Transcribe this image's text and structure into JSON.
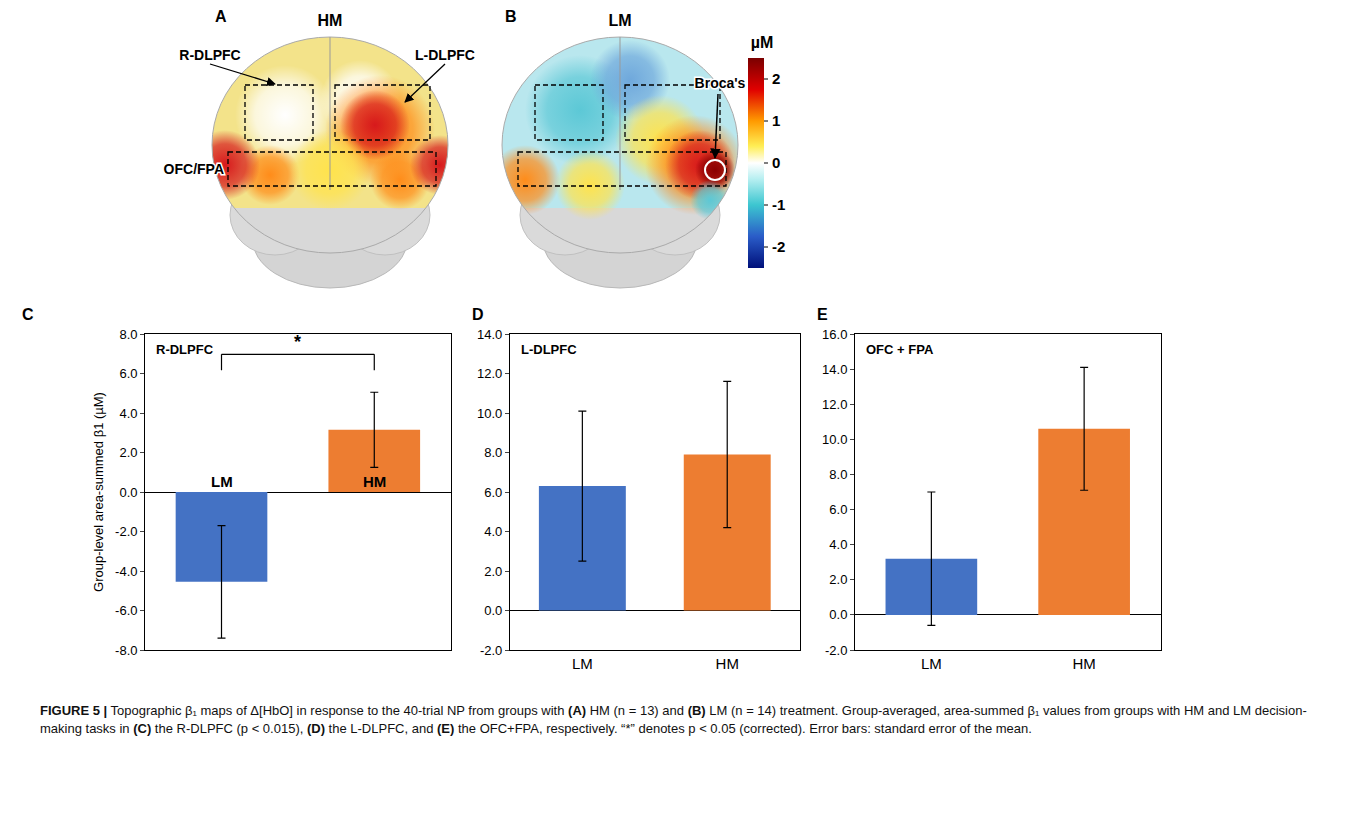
{
  "maps": [
    {
      "letter": "A",
      "title": "HM",
      "regions": [
        "R-DLPFC",
        "L-DLPFC",
        "OFC/FPA"
      ],
      "marker_label": null
    },
    {
      "letter": "B",
      "title": "LM",
      "regions": [],
      "marker_label": "Broca's"
    }
  ],
  "colorbar": {
    "title": "µM",
    "range": [
      -2.5,
      2.5
    ],
    "ticks": [
      2,
      1,
      0,
      -1,
      -2
    ]
  },
  "chart_data": [
    {
      "type": "bar",
      "letter": "C",
      "title": "R-DLPFC",
      "categories": [
        "LM",
        "HM"
      ],
      "values": [
        -4.55,
        3.15
      ],
      "error": [
        2.85,
        1.9
      ],
      "colors": [
        "#4472c4",
        "#ed7d31"
      ],
      "y_label": "Group-level area-summed β1 (µM)",
      "ylim": [
        -8,
        8
      ],
      "yticks": [
        {
          "value": -8,
          "label": "-8.0"
        },
        {
          "value": -6,
          "label": "-6.0"
        },
        {
          "value": -4,
          "label": "-4.0"
        },
        {
          "value": -2,
          "label": "-2.0"
        },
        {
          "value": 0,
          "label": "0.0"
        },
        {
          "value": 2,
          "label": "2.0"
        },
        {
          "value": 4,
          "label": "4.0"
        },
        {
          "value": 6,
          "label": "6.0"
        },
        {
          "value": 8,
          "label": "8.0"
        }
      ],
      "significance": {
        "pair": [
          "LM",
          "HM"
        ],
        "label": "*"
      },
      "tick_labels": "y",
      "grid": false
    },
    {
      "type": "bar",
      "letter": "D",
      "title": "L-DLPFC",
      "categories": [
        "LM",
        "HM"
      ],
      "values": [
        6.3,
        7.9
      ],
      "error": [
        3.8,
        3.7
      ],
      "colors": [
        "#4472c4",
        "#ed7d31"
      ],
      "ylim": [
        -2,
        14
      ],
      "yticks": [
        {
          "value": -2,
          "label": "-2.0"
        },
        {
          "value": 0,
          "label": "0.0"
        },
        {
          "value": 2,
          "label": "2.0"
        },
        {
          "value": 4,
          "label": "4.0"
        },
        {
          "value": 6,
          "label": "6.0"
        },
        {
          "value": 8,
          "label": "8.0"
        },
        {
          "value": 10,
          "label": "10.0"
        },
        {
          "value": 12,
          "label": "12.0"
        },
        {
          "value": 14,
          "label": "14.0"
        }
      ],
      "grid": false
    },
    {
      "type": "bar",
      "letter": "E",
      "title": "OFC + FPA",
      "categories": [
        "LM",
        "HM"
      ],
      "values": [
        3.2,
        10.6
      ],
      "error": [
        3.8,
        3.5
      ],
      "colors": [
        "#4472c4",
        "#ed7d31"
      ],
      "ylim": [
        -2,
        16
      ],
      "yticks": [
        {
          "value": -2,
          "label": "-2.0"
        },
        {
          "value": 0,
          "label": "0.0"
        },
        {
          "value": 2,
          "label": "2.0"
        },
        {
          "value": 4,
          "label": "4.0"
        },
        {
          "value": 6,
          "label": "6.0"
        },
        {
          "value": 8,
          "label": "8.0"
        },
        {
          "value": 10,
          "label": "10.0"
        },
        {
          "value": 12,
          "label": "12.0"
        },
        {
          "value": 14,
          "label": "14.0"
        },
        {
          "value": 16,
          "label": "16.0"
        }
      ],
      "grid": false
    }
  ],
  "caption": [
    {
      "text": "FIGURE 5 |",
      "bold": true
    },
    {
      "text": " Topographic β₁ maps of Δ[HbO] in response to the 40-trial NP from groups with ",
      "bold": false
    },
    {
      "text": "(A)",
      "bold": true
    },
    {
      "text": " HM (n = 13) and ",
      "bold": false
    },
    {
      "text": "(B)",
      "bold": true
    },
    {
      "text": " LM (n = 14) treatment. Group-averaged, area-summed β₁ values from groups with HM and LM decision-making tasks in ",
      "bold": false
    },
    {
      "text": "(C)",
      "bold": true
    },
    {
      "text": " the R-DLPFC (p < 0.015), ",
      "bold": false
    },
    {
      "text": "(D)",
      "bold": true
    },
    {
      "text": " the L-DLPFC, and ",
      "bold": false
    },
    {
      "text": "(E)",
      "bold": true
    },
    {
      "text": " the OFC+FPA, respectively. “*” denotes p < 0.05 (corrected). Error bars: standard error of the mean.",
      "bold": false
    }
  ]
}
